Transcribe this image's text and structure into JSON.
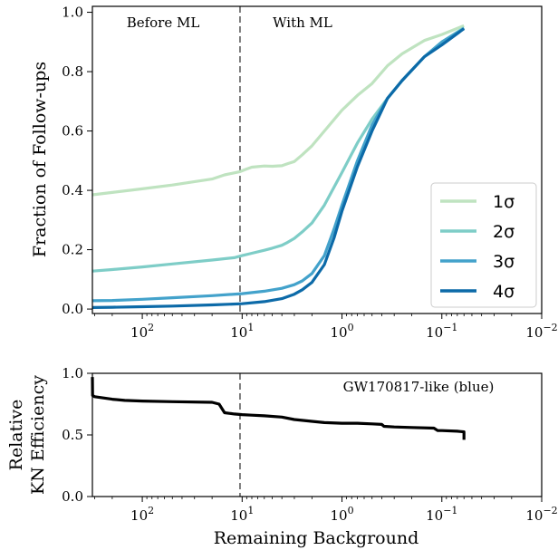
{
  "chart_data": [
    {
      "type": "line",
      "ylabel": "Fraction of Follow-ups",
      "xscale": "log",
      "xaxis_inverted": true,
      "xlim": [
        316,
        0.01
      ],
      "ylim": [
        -0.015,
        1.02
      ],
      "x_ticks": [
        100,
        10,
        1,
        0.1,
        0.01
      ],
      "x_tick_labels": [
        {
          "base": "10",
          "exp": "2"
        },
        {
          "base": "10",
          "exp": "1"
        },
        {
          "base": "10",
          "exp": "0"
        },
        {
          "base": "10",
          "exp": "−1"
        },
        {
          "base": "10",
          "exp": "−2"
        }
      ],
      "y_ticks": [
        0.0,
        0.2,
        0.4,
        0.6,
        0.8,
        1.0
      ],
      "y_tick_labels": [
        "0.0",
        "0.2",
        "0.4",
        "0.6",
        "0.8",
        "1.0"
      ],
      "grid": false,
      "divider_x": 10.5,
      "annotations": {
        "before": "Before ML",
        "after": "With ML"
      },
      "legend_position": "lower-right",
      "series": [
        {
          "name": "1σ",
          "color": "#bfe3c0",
          "x": [
            316,
            200,
            100,
            50,
            20,
            15,
            10.5,
            9,
            8,
            6,
            5,
            4,
            3.5,
            3,
            2.5,
            2,
            1.5,
            1,
            0.7,
            0.5,
            0.35,
            0.25,
            0.15,
            0.1,
            0.06
          ],
          "y": [
            0.385,
            0.393,
            0.405,
            0.418,
            0.438,
            0.452,
            0.463,
            0.472,
            0.478,
            0.482,
            0.481,
            0.483,
            0.49,
            0.497,
            0.52,
            0.55,
            0.6,
            0.67,
            0.72,
            0.76,
            0.82,
            0.86,
            0.905,
            0.925,
            0.955
          ]
        },
        {
          "name": "2σ",
          "color": "#7ecdc7",
          "x": [
            316,
            200,
            100,
            50,
            20,
            12,
            10,
            8,
            6,
            5,
            4,
            3.5,
            3,
            2.5,
            2,
            1.5,
            1,
            0.7,
            0.5,
            0.35,
            0.25,
            0.15,
            0.1,
            0.06
          ],
          "y": [
            0.128,
            0.133,
            0.142,
            0.152,
            0.165,
            0.173,
            0.18,
            0.188,
            0.198,
            0.205,
            0.215,
            0.225,
            0.238,
            0.26,
            0.29,
            0.35,
            0.46,
            0.56,
            0.64,
            0.71,
            0.77,
            0.85,
            0.9,
            0.948
          ]
        },
        {
          "name": "3σ",
          "color": "#43a2cb",
          "x": [
            316,
            200,
            100,
            50,
            20,
            10,
            6,
            4,
            3,
            2.5,
            2,
            1.5,
            1.2,
            1,
            0.7,
            0.5,
            0.35,
            0.25,
            0.15,
            0.1,
            0.06
          ],
          "y": [
            0.028,
            0.029,
            0.033,
            0.038,
            0.045,
            0.052,
            0.06,
            0.07,
            0.082,
            0.095,
            0.12,
            0.18,
            0.27,
            0.35,
            0.5,
            0.62,
            0.71,
            0.77,
            0.85,
            0.9,
            0.945
          ]
        },
        {
          "name": "4σ",
          "color": "#0c6aa8",
          "x": [
            316,
            200,
            100,
            50,
            20,
            10,
            6,
            4,
            3,
            2.5,
            2,
            1.5,
            1.2,
            1,
            0.7,
            0.5,
            0.35,
            0.25,
            0.15,
            0.1,
            0.06
          ],
          "y": [
            0.005,
            0.006,
            0.008,
            0.01,
            0.014,
            0.018,
            0.025,
            0.035,
            0.05,
            0.065,
            0.09,
            0.15,
            0.24,
            0.33,
            0.48,
            0.6,
            0.71,
            0.77,
            0.85,
            0.89,
            0.945
          ]
        }
      ]
    },
    {
      "type": "line",
      "xlabel": "Remaining Background",
      "ylabel_lines": [
        "Relative",
        "KN Efficiency"
      ],
      "xscale": "log",
      "xaxis_inverted": true,
      "xlim": [
        316,
        0.01
      ],
      "ylim": [
        0.0,
        1.0
      ],
      "x_ticks": [
        100,
        10,
        1,
        0.1,
        0.01
      ],
      "x_tick_labels": [
        {
          "base": "10",
          "exp": "2"
        },
        {
          "base": "10",
          "exp": "1"
        },
        {
          "base": "10",
          "exp": "0"
        },
        {
          "base": "10",
          "exp": "−1"
        },
        {
          "base": "10",
          "exp": "−2"
        }
      ],
      "y_ticks": [
        0.0,
        0.5,
        1.0
      ],
      "y_tick_labels": [
        "0.0",
        "0.5",
        "1.0"
      ],
      "grid": false,
      "divider_x": 10.5,
      "annotation": "GW170817-like (blue)",
      "series": [
        {
          "color": "#000000",
          "x": [
            316,
            315,
            300,
            200,
            150,
            100,
            50,
            20,
            17,
            15,
            12,
            10,
            8,
            6,
            4,
            3,
            2,
            1.5,
            1,
            0.7,
            0.5,
            0.4,
            0.38,
            0.3,
            0.2,
            0.12,
            0.11,
            0.1,
            0.07,
            0.06,
            0.06
          ],
          "y": [
            0.97,
            0.82,
            0.81,
            0.79,
            0.78,
            0.775,
            0.77,
            0.765,
            0.75,
            0.68,
            0.67,
            0.665,
            0.66,
            0.655,
            0.645,
            0.625,
            0.61,
            0.6,
            0.595,
            0.595,
            0.59,
            0.585,
            0.57,
            0.565,
            0.56,
            0.555,
            0.535,
            0.535,
            0.53,
            0.525,
            0.46
          ]
        }
      ]
    }
  ]
}
